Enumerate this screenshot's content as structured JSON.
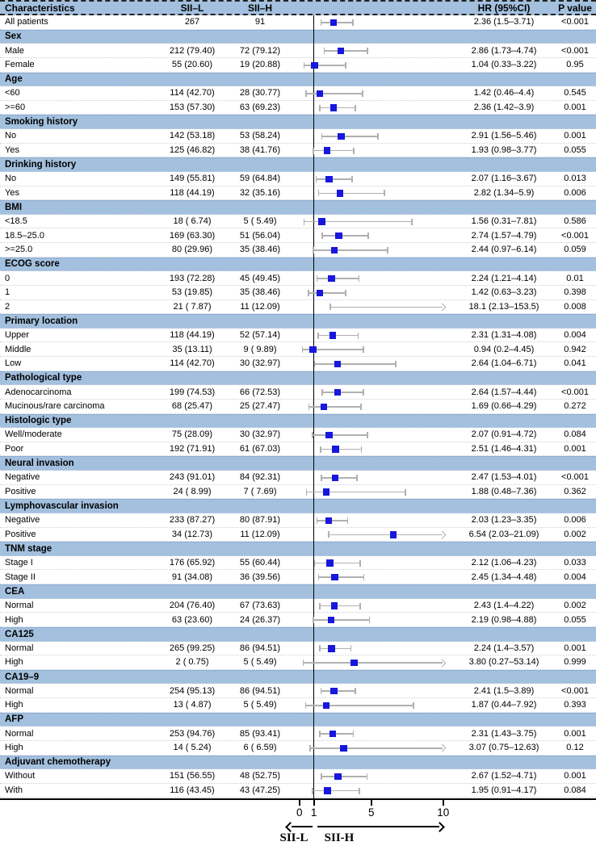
{
  "header": {
    "characteristics": "Characteristics",
    "sii_l": "SII–L",
    "sii_h": "SII–H",
    "hr": "HR (95%CI)",
    "p": "P value"
  },
  "axis": {
    "ticks": [
      0,
      1,
      5,
      10
    ],
    "ref_value": 1,
    "left_label": "SII-L",
    "right_label": "SII-H"
  },
  "colors": {
    "band": "#a3c0de",
    "marker": "#1717dd",
    "ci_line": "#b0b0b0",
    "axis": "#000000"
  },
  "chart_data": {
    "type": "forest",
    "x_scale": "linear",
    "x_ticks": [
      0,
      1,
      5,
      10
    ],
    "reference_line": 1,
    "x_plot_max": 10.2,
    "columns": [
      "Characteristics",
      "SII–L",
      "SII–H",
      "HR (95%CI)",
      "P value"
    ],
    "arrow_labels": [
      "SII-L",
      "SII-H"
    ],
    "rows": [
      {
        "type": "data",
        "label": "All patients",
        "sii_l": "267",
        "sii_h": "91",
        "hr_text": "2.36 (1.5–3.71)",
        "p": "<0.001",
        "est": 2.36,
        "lo": 1.5,
        "hi": 3.71
      },
      {
        "type": "section",
        "label": "Sex"
      },
      {
        "type": "data",
        "label": "Male",
        "sii_l": "212 (79.40)",
        "sii_h": "72 (79.12)",
        "hr_text": "2.86 (1.73–4.74)",
        "p": "<0.001",
        "est": 2.86,
        "lo": 1.73,
        "hi": 4.74
      },
      {
        "type": "data",
        "label": "Female",
        "sii_l": "55 (20.60)",
        "sii_h": "19 (20.88)",
        "hr_text": "1.04 (0.33–3.22)",
        "p": "0.95",
        "est": 1.04,
        "lo": 0.33,
        "hi": 3.22
      },
      {
        "type": "section",
        "label": "Age"
      },
      {
        "type": "data",
        "label": "<60",
        "sii_l": "114 (42.70)",
        "sii_h": "28 (30.77)",
        "hr_text": "1.42 (0.46–4.4)",
        "p": "0.545",
        "est": 1.42,
        "lo": 0.46,
        "hi": 4.4
      },
      {
        "type": "data",
        "label": ">=60",
        "sii_l": "153 (57.30)",
        "sii_h": "63 (69.23)",
        "hr_text": "2.36 (1.42–3.9)",
        "p": "0.001",
        "est": 2.36,
        "lo": 1.42,
        "hi": 3.9
      },
      {
        "type": "section",
        "label": "Smoking history"
      },
      {
        "type": "data",
        "label": "No",
        "sii_l": "142 (53.18)",
        "sii_h": "53 (58.24)",
        "hr_text": "2.91 (1.56–5.46)",
        "p": "0.001",
        "est": 2.91,
        "lo": 1.56,
        "hi": 5.46
      },
      {
        "type": "data",
        "label": "Yes",
        "sii_l": "125 (46.82)",
        "sii_h": "38 (41.76)",
        "hr_text": "1.93 (0.98–3.77)",
        "p": "0.055",
        "est": 1.93,
        "lo": 0.98,
        "hi": 3.77
      },
      {
        "type": "section",
        "label": "Drinking history"
      },
      {
        "type": "data",
        "label": "No",
        "sii_l": "149 (55.81)",
        "sii_h": "59 (64.84)",
        "hr_text": "2.07 (1.16–3.67)",
        "p": "0.013",
        "est": 2.07,
        "lo": 1.16,
        "hi": 3.67
      },
      {
        "type": "data",
        "label": "Yes",
        "sii_l": "118 (44.19)",
        "sii_h": "32 (35.16)",
        "hr_text": "2.82 (1.34–5.9)",
        "p": "0.006",
        "est": 2.82,
        "lo": 1.34,
        "hi": 5.9
      },
      {
        "type": "section",
        "label": "BMI"
      },
      {
        "type": "data",
        "label": "<18.5",
        "sii_l": "18 ( 6.74)",
        "sii_h": "5 ( 5.49)",
        "hr_text": "1.56 (0.31–7.81)",
        "p": "0.586",
        "est": 1.56,
        "lo": 0.31,
        "hi": 7.81
      },
      {
        "type": "data",
        "label": "18.5–25.0",
        "sii_l": "169 (63.30)",
        "sii_h": "51 (56.04)",
        "hr_text": "2.74 (1.57–4.79)",
        "p": "<0.001",
        "est": 2.74,
        "lo": 1.57,
        "hi": 4.79
      },
      {
        "type": "data",
        "label": ">=25.0",
        "sii_l": "80 (29.96)",
        "sii_h": "35 (38.46)",
        "hr_text": "2.44 (0.97–6.14)",
        "p": "0.059",
        "est": 2.44,
        "lo": 0.97,
        "hi": 6.14
      },
      {
        "type": "section",
        "label": "ECOG score"
      },
      {
        "type": "data",
        "label": "0",
        "sii_l": "193 (72.28)",
        "sii_h": "45 (49.45)",
        "hr_text": "2.24 (1.21–4.14)",
        "p": "0.01",
        "est": 2.24,
        "lo": 1.21,
        "hi": 4.14
      },
      {
        "type": "data",
        "label": "1",
        "sii_l": "53 (19.85)",
        "sii_h": "35 (38.46)",
        "hr_text": "1.42 (0.63–3.23)",
        "p": "0.398",
        "est": 1.42,
        "lo": 0.63,
        "hi": 3.23
      },
      {
        "type": "data",
        "label": "2",
        "sii_l": "21 ( 7.87)",
        "sii_h": "11 (12.09)",
        "hr_text": "18.1 (2.13–153.5)",
        "p": "0.008",
        "est": 18.1,
        "lo": 2.13,
        "hi": 153.5
      },
      {
        "type": "section",
        "label": "Primary location"
      },
      {
        "type": "data",
        "label": "Upper",
        "sii_l": "118 (44.19)",
        "sii_h": "52 (57.14)",
        "hr_text": "2.31 (1.31–4.08)",
        "p": "0.004",
        "est": 2.31,
        "lo": 1.31,
        "hi": 4.08
      },
      {
        "type": "data",
        "label": "Middle",
        "sii_l": "35 (13.11)",
        "sii_h": "9 ( 9.89)",
        "hr_text": "0.94 (0.2–4.45)",
        "p": "0.942",
        "est": 0.94,
        "lo": 0.2,
        "hi": 4.45
      },
      {
        "type": "data",
        "label": "Low",
        "sii_l": "114 (42.70)",
        "sii_h": "30 (32.97)",
        "hr_text": "2.64 (1.04–6.71)",
        "p": "0.041",
        "est": 2.64,
        "lo": 1.04,
        "hi": 6.71
      },
      {
        "type": "section",
        "label": "Pathological type"
      },
      {
        "type": "data",
        "label": "Adenocarcinoma",
        "sii_l": "199 (74.53)",
        "sii_h": "66 (72.53)",
        "hr_text": "2.64 (1.57–4.44)",
        "p": "<0.001",
        "est": 2.64,
        "lo": 1.57,
        "hi": 4.44
      },
      {
        "type": "data",
        "label": "Mucinous/rare carcinoma",
        "sii_l": "68 (25.47)",
        "sii_h": "25 (27.47)",
        "hr_text": "1.69 (0.66–4.29)",
        "p": "0.272",
        "est": 1.69,
        "lo": 0.66,
        "hi": 4.29
      },
      {
        "type": "section",
        "label": "Histologic type"
      },
      {
        "type": "data",
        "label": "Well/moderate",
        "sii_l": "75 (28.09)",
        "sii_h": "30 (32.97)",
        "hr_text": "2.07 (0.91–4.72)",
        "p": "0.084",
        "est": 2.07,
        "lo": 0.91,
        "hi": 4.72
      },
      {
        "type": "data",
        "label": "Poor",
        "sii_l": "192 (71.91)",
        "sii_h": "61 (67.03)",
        "hr_text": "2.51 (1.46–4.31)",
        "p": "0.001",
        "est": 2.51,
        "lo": 1.46,
        "hi": 4.31
      },
      {
        "type": "section",
        "label": "Neural invasion"
      },
      {
        "type": "data",
        "label": "Negative",
        "sii_l": "243 (91.01)",
        "sii_h": "84 (92.31)",
        "hr_text": "2.47 (1.53–4.01)",
        "p": "<0.001",
        "est": 2.47,
        "lo": 1.53,
        "hi": 4.01
      },
      {
        "type": "data",
        "label": "Positive",
        "sii_l": "24 ( 8.99)",
        "sii_h": "7 ( 7.69)",
        "hr_text": "1.88 (0.48–7.36)",
        "p": "0.362",
        "est": 1.88,
        "lo": 0.48,
        "hi": 7.36
      },
      {
        "type": "section",
        "label": "Lymphovascular invasion"
      },
      {
        "type": "data",
        "label": "Negative",
        "sii_l": "233 (87.27)",
        "sii_h": "80 (87.91)",
        "hr_text": "2.03 (1.23–3.35)",
        "p": "0.006",
        "est": 2.03,
        "lo": 1.23,
        "hi": 3.35
      },
      {
        "type": "data",
        "label": "Positive",
        "sii_l": "34 (12.73)",
        "sii_h": "11 (12.09)",
        "hr_text": "6.54 (2.03–21.09)",
        "p": "0.002",
        "est": 6.54,
        "lo": 2.03,
        "hi": 21.09
      },
      {
        "type": "section",
        "label": "TNM stage"
      },
      {
        "type": "data",
        "label": "Stage I",
        "sii_l": "176 (65.92)",
        "sii_h": "55 (60.44)",
        "hr_text": "2.12 (1.06–4.23)",
        "p": "0.033",
        "est": 2.12,
        "lo": 1.06,
        "hi": 4.23
      },
      {
        "type": "data",
        "label": "Stage II",
        "sii_l": "91 (34.08)",
        "sii_h": "36 (39.56)",
        "hr_text": "2.45 (1.34–4.48)",
        "p": "0.004",
        "est": 2.45,
        "lo": 1.34,
        "hi": 4.48
      },
      {
        "type": "section",
        "label": "CEA"
      },
      {
        "type": "data",
        "label": "Normal",
        "sii_l": "204 (76.40)",
        "sii_h": "67 (73.63)",
        "hr_text": "2.43 (1.4–4.22)",
        "p": "0.002",
        "est": 2.43,
        "lo": 1.4,
        "hi": 4.22
      },
      {
        "type": "data",
        "label": "High",
        "sii_l": "63 (23.60)",
        "sii_h": "24 (26.37)",
        "hr_text": "2.19 (0.98–4.88)",
        "p": "0.055",
        "est": 2.19,
        "lo": 0.98,
        "hi": 4.88
      },
      {
        "type": "section",
        "label": "CA125"
      },
      {
        "type": "data",
        "label": "Normal",
        "sii_l": "265 (99.25)",
        "sii_h": "86 (94.51)",
        "hr_text": "2.24 (1.4–3.57)",
        "p": "0.001",
        "est": 2.24,
        "lo": 1.4,
        "hi": 3.57
      },
      {
        "type": "data",
        "label": "High",
        "sii_l": "2 ( 0.75)",
        "sii_h": "5 ( 5.49)",
        "hr_text": "3.80 (0.27–53.14)",
        "p": "0.999",
        "est": 3.8,
        "lo": 0.27,
        "hi": 53.14
      },
      {
        "type": "section",
        "label": "CA19–9"
      },
      {
        "type": "data",
        "label": "Normal",
        "sii_l": "254 (95.13)",
        "sii_h": "86 (94.51)",
        "hr_text": "2.41 (1.5–3.89)",
        "p": "<0.001",
        "est": 2.41,
        "lo": 1.5,
        "hi": 3.89
      },
      {
        "type": "data",
        "label": "High",
        "sii_l": "13 ( 4.87)",
        "sii_h": "5 ( 5.49)",
        "hr_text": "1.87 (0.44–7.92)",
        "p": "0.393",
        "est": 1.87,
        "lo": 0.44,
        "hi": 7.92
      },
      {
        "type": "section",
        "label": "AFP"
      },
      {
        "type": "data",
        "label": "Normal",
        "sii_l": "253 (94.76)",
        "sii_h": "85 (93.41)",
        "hr_text": "2.31 (1.43–3.75)",
        "p": "0.001",
        "est": 2.31,
        "lo": 1.43,
        "hi": 3.75
      },
      {
        "type": "data",
        "label": "High",
        "sii_l": "14 ( 5.24)",
        "sii_h": "6 ( 6.59)",
        "hr_text": "3.07 (0.75–12.63)",
        "p": "0.12",
        "est": 3.07,
        "lo": 0.75,
        "hi": 12.63
      },
      {
        "type": "section",
        "label": "Adjuvant chemotherapy"
      },
      {
        "type": "data",
        "label": "Without",
        "sii_l": "151 (56.55)",
        "sii_h": "48 (52.75)",
        "hr_text": "2.67 (1.52–4.71)",
        "p": "0.001",
        "est": 2.67,
        "lo": 1.52,
        "hi": 4.71
      },
      {
        "type": "data",
        "label": "With",
        "sii_l": "116 (43.45)",
        "sii_h": "43 (47.25)",
        "hr_text": "1.95 (0.91–4.17)",
        "p": "0.084",
        "est": 1.95,
        "lo": 0.91,
        "hi": 4.17
      }
    ]
  }
}
